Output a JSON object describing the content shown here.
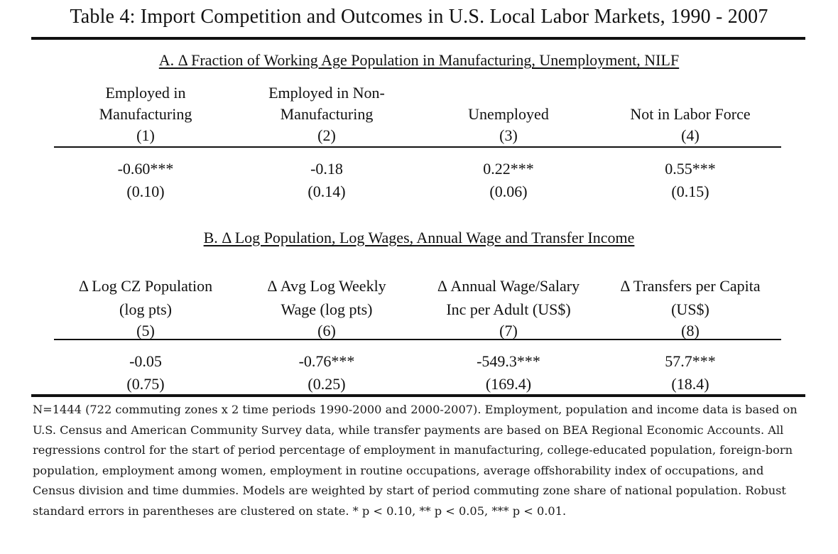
{
  "title": "Table 4: Import Competition and Outcomes in U.S. Local Labor Markets, 1990 - 2007",
  "panel_a": {
    "heading": "A. Δ Fraction of Working Age Population in Manufacturing, Unemployment, NILF",
    "columns": [
      {
        "line1": "Employed in",
        "line2": "Manufacturing",
        "num": "(1)",
        "coef": "-0.60***",
        "se": "(0.10)"
      },
      {
        "line1": "Employed in Non-",
        "line2": "Manufacturing",
        "num": "(2)",
        "coef": "-0.18",
        "se": "(0.14)"
      },
      {
        "line1": "",
        "line2": "Unemployed",
        "num": "(3)",
        "coef": "0.22***",
        "se": "(0.06)"
      },
      {
        "line1": "",
        "line2": "Not in Labor Force",
        "num": "(4)",
        "coef": "0.55***",
        "se": "(0.15)"
      }
    ]
  },
  "panel_b": {
    "heading": "B. Δ Log Population, Log Wages, Annual Wage and Transfer Income",
    "columns": [
      {
        "line1": "Δ Log CZ Population",
        "line2": "(log pts)",
        "num": "(5)",
        "coef": "-0.05",
        "se": "(0.75)"
      },
      {
        "line1": "Δ Avg Log Weekly",
        "line2": "Wage (log pts)",
        "num": "(6)",
        "coef": "-0.76***",
        "se": "(0.25)"
      },
      {
        "line1": "Δ Annual Wage/Salary",
        "line2": "Inc per Adult (US$)",
        "num": "(7)",
        "coef": "-549.3***",
        "se": "(169.4)"
      },
      {
        "line1": "Δ Transfers per Capita",
        "line2": "(US$)",
        "num": "(8)",
        "coef": "57.7***",
        "se": "(18.4)"
      }
    ]
  },
  "note": "N=1444 (722 commuting zones x 2 time periods 1990-2000 and 2000-2007). Employment, population and income data is based on U.S. Census and American Community Survey data, while transfer payments are based on BEA Regional Economic Accounts. All regressions control for the start of period percentage of employment in manufacturing, college-educated population, foreign-born population, employment among women, employment in routine occupations, average offshorability index of occupations, and Census division and time dummies. Models are weighted by start of period commuting zone share of national population. Robust standard errors in parentheses are clustered on state. * p < 0.10, ** p < 0.05, *** p < 0.01."
}
